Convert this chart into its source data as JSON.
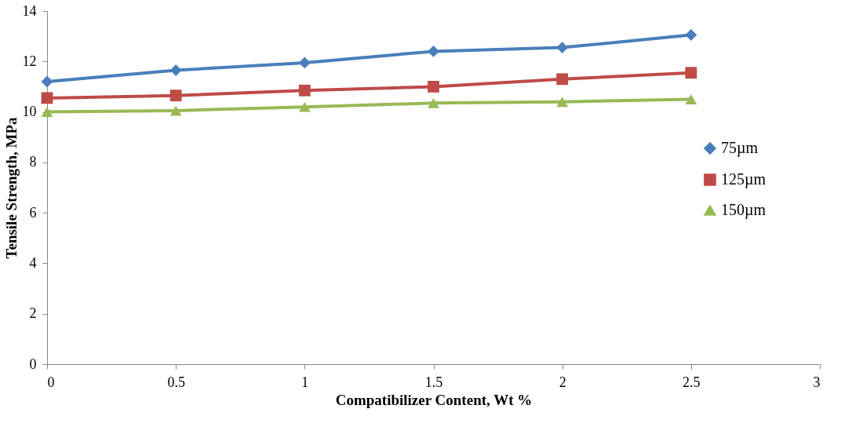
{
  "chart_data": {
    "type": "line",
    "xlabel": "Compatibilizer Content, Wt %",
    "ylabel": "Tensile Strength, MPa",
    "x": [
      0,
      0.5,
      1,
      1.5,
      2,
      2.5
    ],
    "series": [
      {
        "name": "75µm",
        "color": "#4a7ebb",
        "marker": "diamond",
        "values": [
          11.2,
          11.65,
          11.95,
          12.4,
          12.55,
          13.05
        ]
      },
      {
        "name": "125µm",
        "color": "#be4b48",
        "marker": "square",
        "values": [
          10.55,
          10.65,
          10.85,
          11.0,
          11.3,
          11.55
        ]
      },
      {
        "name": "150µm",
        "color": "#98b954",
        "marker": "triangle",
        "values": [
          10.0,
          10.05,
          10.2,
          10.35,
          10.4,
          10.5
        ]
      }
    ],
    "xlim": [
      0,
      3
    ],
    "xticks": [
      0,
      0.5,
      1,
      1.5,
      2,
      2.5,
      3
    ],
    "ylim": [
      0,
      14
    ],
    "yticks": [
      0,
      2,
      4,
      6,
      8,
      10,
      12,
      14
    ],
    "grid": false,
    "legend": "right",
    "line_style": "solid"
  }
}
